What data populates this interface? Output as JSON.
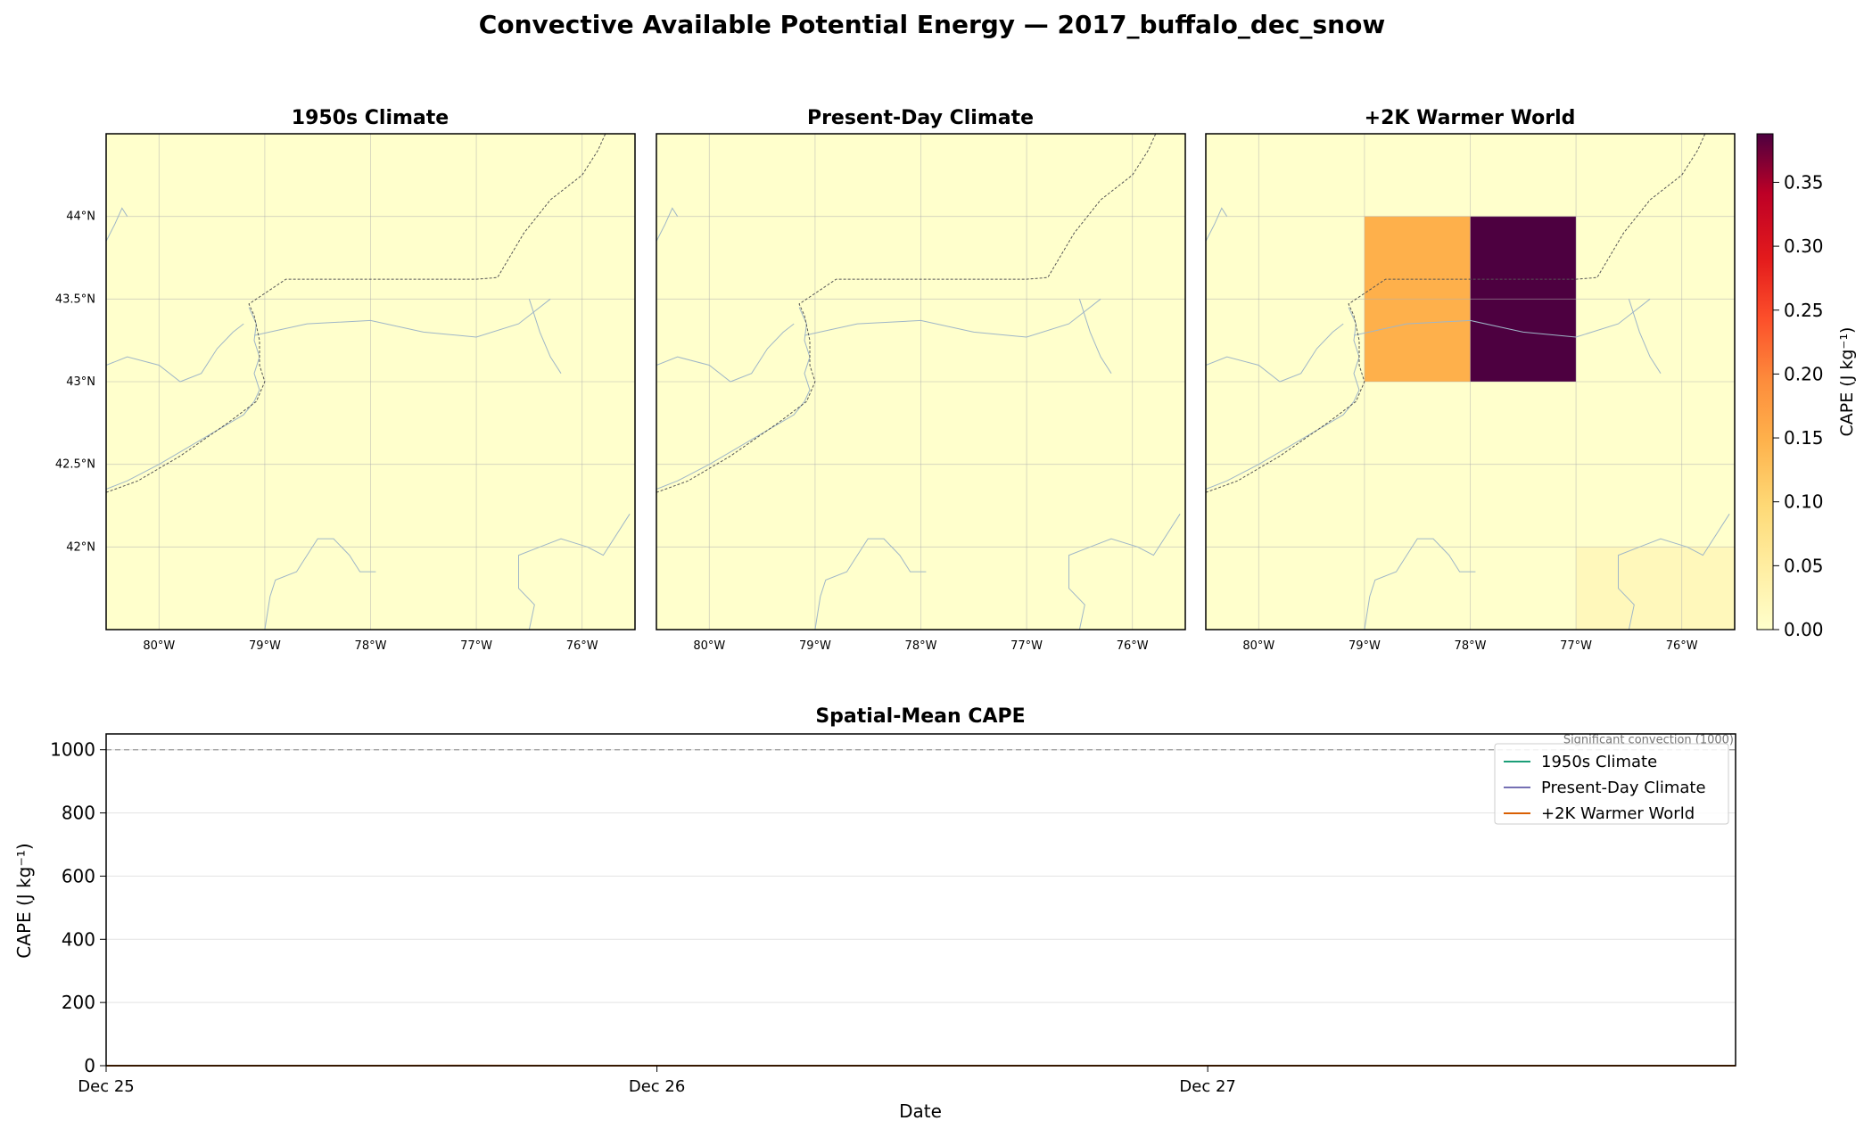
{
  "figure": {
    "title": "Convective Available Potential Energy — 2017_buffalo_dec_snow"
  },
  "chart_data": [
    {
      "type": "heatmap",
      "title": "1950s Climate",
      "lon_ticks": [
        -80,
        -79,
        -78,
        -77,
        -76
      ],
      "lat_ticks": [
        42,
        42.5,
        43,
        43.5,
        44
      ],
      "lon_tick_labels": [
        "80°W",
        "79°W",
        "78°W",
        "77°W",
        "76°W"
      ],
      "lat_tick_labels": [
        "42°N",
        "42.5°N",
        "43°N",
        "43.5°N",
        "44°N"
      ],
      "xlim": [
        -80.5,
        -75.5
      ],
      "ylim": [
        41.5,
        44.5
      ],
      "cells": [],
      "background_value": 0.0
    },
    {
      "type": "heatmap",
      "title": "Present-Day Climate",
      "lon_ticks": [
        -80,
        -79,
        -78,
        -77,
        -76
      ],
      "lat_ticks": [
        42,
        42.5,
        43,
        43.5,
        44
      ],
      "lon_tick_labels": [
        "80°W",
        "79°W",
        "78°W",
        "77°W",
        "76°W"
      ],
      "lat_tick_labels": [
        "42°N",
        "42.5°N",
        "43°N",
        "43.5°N",
        "44°N"
      ],
      "xlim": [
        -80.5,
        -75.5
      ],
      "ylim": [
        41.5,
        44.5
      ],
      "cells": [],
      "background_value": 0.0
    },
    {
      "type": "heatmap",
      "title": "+2K Warmer World",
      "lon_ticks": [
        -80,
        -79,
        -78,
        -77,
        -76
      ],
      "lat_ticks": [
        42,
        42.5,
        43,
        43.5,
        44
      ],
      "lon_tick_labels": [
        "80°W",
        "79°W",
        "78°W",
        "77°W",
        "76°W"
      ],
      "lat_tick_labels": [
        "42°N",
        "42.5°N",
        "43°N",
        "43.5°N",
        "44°N"
      ],
      "xlim": [
        -80.5,
        -75.5
      ],
      "ylim": [
        41.5,
        44.5
      ],
      "background_value": 0.0,
      "cells": [
        {
          "lon0": -79,
          "lon1": -78,
          "lat0": 43,
          "lat1": 44,
          "value": 0.15
        },
        {
          "lon0": -78,
          "lon1": -77,
          "lat0": 43,
          "lat1": 44,
          "value": 0.39
        },
        {
          "lon0": -77,
          "lon1": -75.5,
          "lat0": 41.5,
          "lat1": 42,
          "value": 0.02
        }
      ]
    },
    {
      "type": "colorbar",
      "label": "CAPE (J kg⁻¹)",
      "ticks": [
        0.0,
        0.05,
        0.1,
        0.15,
        0.2,
        0.25,
        0.3,
        0.35
      ],
      "tick_labels": [
        "0.00",
        "0.05",
        "0.10",
        "0.15",
        "0.20",
        "0.25",
        "0.30",
        "0.35"
      ],
      "vmin": 0.0,
      "vmax": 0.388,
      "colormap": "YlOrRd"
    },
    {
      "type": "line",
      "title": "Spatial-Mean CAPE",
      "xlabel": "Date",
      "ylabel": "CAPE (J kg⁻¹)",
      "x_tick_labels": [
        "Dec 25",
        "Dec 26",
        "Dec 27"
      ],
      "x_ticks": [
        0,
        24,
        48
      ],
      "xlim": [
        0,
        71
      ],
      "ylim": [
        0,
        1050
      ],
      "y_ticks": [
        0,
        200,
        400,
        600,
        800,
        1000
      ],
      "y_tick_labels": [
        "0",
        "200",
        "400",
        "600",
        "800",
        "1000"
      ],
      "grid": true,
      "legend_position": "top-right",
      "reference_line": {
        "y": 1000,
        "label": "Significant convection (1000)"
      },
      "series": [
        {
          "name": "1950s Climate",
          "color": "#1b9e77",
          "x": [
            0,
            12,
            24,
            36,
            48,
            60,
            71
          ],
          "y": [
            0,
            0,
            0,
            0,
            0,
            0,
            0
          ]
        },
        {
          "name": "Present-Day Climate",
          "color": "#7570b3",
          "x": [
            0,
            12,
            24,
            36,
            48,
            60,
            71
          ],
          "y": [
            0,
            0,
            0,
            0,
            0,
            0,
            0
          ]
        },
        {
          "name": "+2K Warmer World",
          "color": "#d95f02",
          "x": [
            0,
            12,
            16,
            20,
            24,
            36,
            48,
            60,
            71
          ],
          "y": [
            0,
            0,
            0.2,
            0,
            0,
            0,
            0,
            0,
            0
          ]
        }
      ]
    }
  ]
}
